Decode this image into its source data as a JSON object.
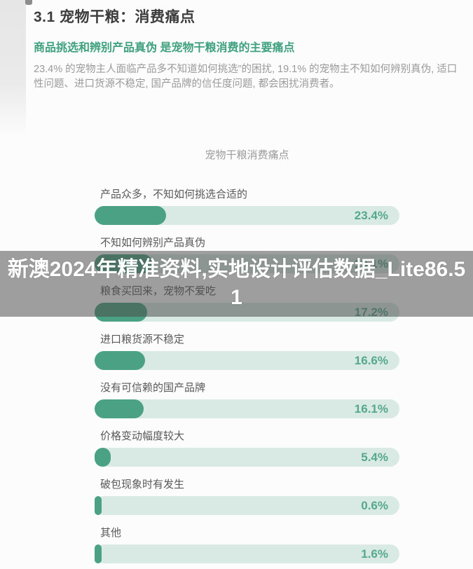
{
  "page": {
    "section_title": "3.1 宠物干粮：消费痛点",
    "subtitle": "商品挑选和辨别产品真伪 是宠物干粮消费的主要痛点",
    "body_text": "23.4% 的宠物主人面临产品多不知道如何挑选”的困扰, 19.1% 的宠物主不知如何辨别真伪, 适口性问题、进口货源不稳定, 国产品牌的信任度问题, 都会困扰消费者。"
  },
  "watermark_banner": {
    "line1": "新澳2024年精准资料,实地设计评估数据_Lite86.5",
    "line2": "1"
  },
  "chart_data": {
    "type": "bar",
    "orientation": "horizontal",
    "title": "宠物干粮消费痛点",
    "xlabel": "",
    "ylabel": "",
    "unit": "%",
    "xlim": [
      0,
      100
    ],
    "grid": false,
    "legend": "none",
    "categories": [
      "产品众多，不知如何挑选合适的",
      "不知如何辨别产品真伪",
      "粮食买回来，宠物不爱吃",
      "进口粮货源不稳定",
      "没有可信赖的国产品牌",
      "价格变动幅度较大",
      "破包现象时有发生",
      "其他"
    ],
    "values": [
      23.4,
      19.1,
      17.2,
      16.6,
      16.1,
      5.4,
      0.6,
      1.6
    ],
    "value_labels": [
      "23.4%",
      "19.1%",
      "17.2%",
      "16.6%",
      "16.1%",
      "5.4%",
      "0.6%",
      "1.6%"
    ],
    "colors": {
      "bar_fill": "#4ba183",
      "bar_track": "#d9eae5",
      "value_text": "#55a98a",
      "subtitle_green": "#3fa17e"
    }
  }
}
